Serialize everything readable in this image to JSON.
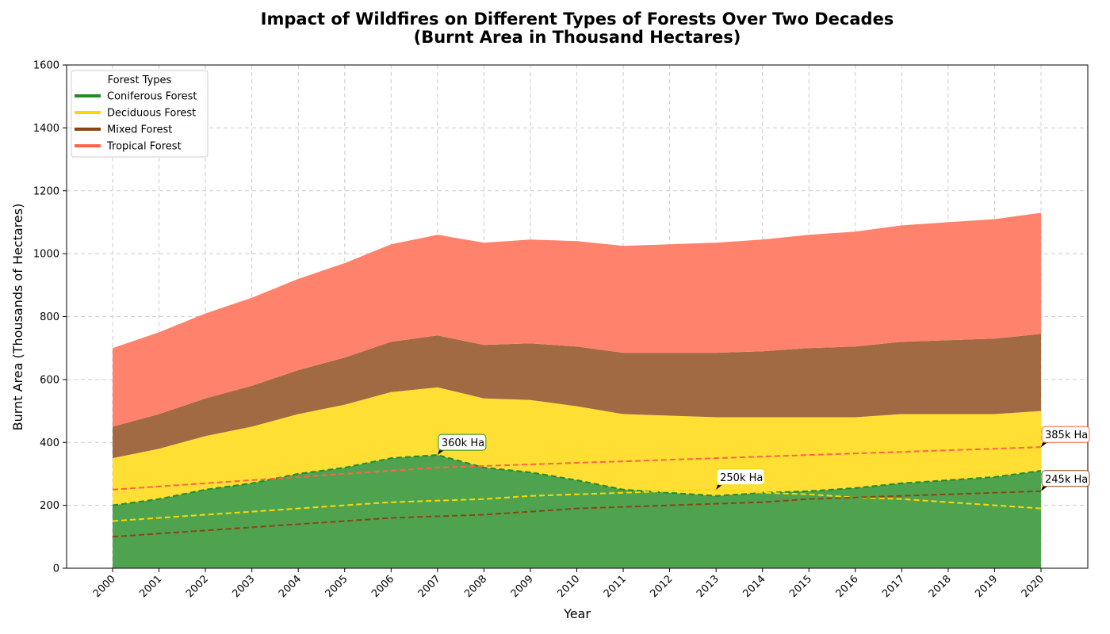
{
  "chart_data": {
    "type": "area",
    "stacked": true,
    "title": "Impact of Wildfires on Different Types of Forests Over Two Decades",
    "subtitle": "(Burnt Area in Thousand Hectares)",
    "xlabel": "Year",
    "ylabel": "Burnt Area (Thousands of Hectares)",
    "ylim": [
      0,
      1600
    ],
    "yticks": [
      0,
      200,
      400,
      600,
      800,
      1000,
      1200,
      1400,
      1600
    ],
    "grid": true,
    "legend": {
      "title": "Forest Types",
      "placement": "top-left"
    },
    "x": [
      "2000",
      "2001",
      "2002",
      "2003",
      "2004",
      "2005",
      "2006",
      "2007",
      "2008",
      "2009",
      "2010",
      "2011",
      "2012",
      "2013",
      "2014",
      "2015",
      "2016",
      "2017",
      "2018",
      "2019",
      "2020"
    ],
    "series": [
      {
        "name": "Coniferous Forest",
        "line_color": "#228B22",
        "fill_color": "#4FA34F",
        "values": [
          200,
          220,
          250,
          270,
          300,
          320,
          350,
          360,
          320,
          305,
          280,
          250,
          240,
          230,
          240,
          245,
          255,
          270,
          280,
          290,
          310
        ]
      },
      {
        "name": "Deciduous Forest",
        "line_color": "#FFD700",
        "fill_color": "#FFDF33",
        "values": [
          150,
          160,
          170,
          180,
          190,
          200,
          210,
          215,
          220,
          230,
          235,
          240,
          245,
          250,
          240,
          235,
          225,
          220,
          210,
          200,
          190
        ]
      },
      {
        "name": "Mixed Forest",
        "line_color": "#8B4513",
        "fill_color": "#A26A42",
        "values": [
          100,
          110,
          120,
          130,
          140,
          150,
          160,
          165,
          170,
          180,
          190,
          195,
          200,
          205,
          210,
          220,
          225,
          230,
          235,
          240,
          245
        ]
      },
      {
        "name": "Tropical Forest",
        "line_color": "#FF6347",
        "fill_color": "#FF826C",
        "values": [
          250,
          260,
          270,
          280,
          290,
          300,
          310,
          320,
          325,
          330,
          335,
          340,
          345,
          350,
          355,
          360,
          365,
          370,
          375,
          380,
          385
        ]
      }
    ],
    "annotations": [
      {
        "text": "360k Ha",
        "x": "2007",
        "y": 360,
        "color": "#228B22"
      },
      {
        "text": "250k Ha",
        "x": "2013",
        "y": 250,
        "color": "#FFD700"
      },
      {
        "text": "245k Ha",
        "x": "2020",
        "y": 245,
        "color": "#8B4513"
      },
      {
        "text": "385k Ha",
        "x": "2020",
        "y": 385,
        "color": "#FF6347"
      }
    ]
  }
}
